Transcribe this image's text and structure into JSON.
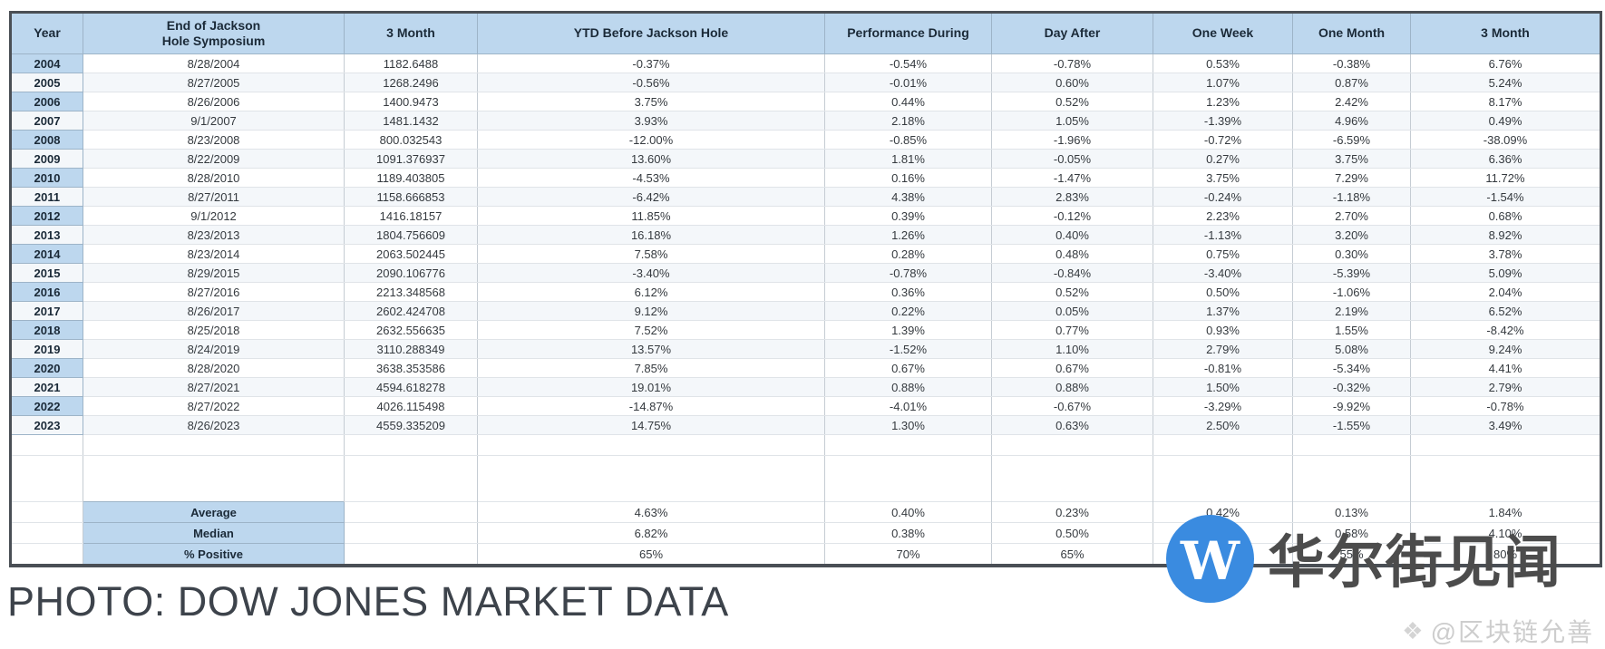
{
  "chart_data": {
    "type": "table",
    "columns": [
      "Year",
      "End of Jackson\nHole Symposium",
      "3 Month",
      "YTD Before Jackson Hole",
      "Performance During",
      "Day After",
      "One Week",
      "One Month",
      "3 Month"
    ],
    "rows": [
      [
        "2004",
        "8/28/2004",
        "1182.6488",
        "-0.37%",
        "-0.54%",
        "-0.78%",
        "0.53%",
        "-0.38%",
        "6.76%"
      ],
      [
        "2005",
        "8/27/2005",
        "1268.2496",
        "-0.56%",
        "-0.01%",
        "0.60%",
        "1.07%",
        "0.87%",
        "5.24%"
      ],
      [
        "2006",
        "8/26/2006",
        "1400.9473",
        "3.75%",
        "0.44%",
        "0.52%",
        "1.23%",
        "2.42%",
        "8.17%"
      ],
      [
        "2007",
        "9/1/2007",
        "1481.1432",
        "3.93%",
        "2.18%",
        "1.05%",
        "-1.39%",
        "4.96%",
        "0.49%"
      ],
      [
        "2008",
        "8/23/2008",
        "800.032543",
        "-12.00%",
        "-0.85%",
        "-1.96%",
        "-0.72%",
        "-6.59%",
        "-38.09%"
      ],
      [
        "2009",
        "8/22/2009",
        "1091.376937",
        "13.60%",
        "1.81%",
        "-0.05%",
        "0.27%",
        "3.75%",
        "6.36%"
      ],
      [
        "2010",
        "8/28/2010",
        "1189.403805",
        "-4.53%",
        "0.16%",
        "-1.47%",
        "3.75%",
        "7.29%",
        "11.72%"
      ],
      [
        "2011",
        "8/27/2011",
        "1158.666853",
        "-6.42%",
        "4.38%",
        "2.83%",
        "-0.24%",
        "-1.18%",
        "-1.54%"
      ],
      [
        "2012",
        "9/1/2012",
        "1416.18157",
        "11.85%",
        "0.39%",
        "-0.12%",
        "2.23%",
        "2.70%",
        "0.68%"
      ],
      [
        "2013",
        "8/23/2013",
        "1804.756609",
        "16.18%",
        "1.26%",
        "0.40%",
        "-1.13%",
        "3.20%",
        "8.92%"
      ],
      [
        "2014",
        "8/23/2014",
        "2063.502445",
        "7.58%",
        "0.28%",
        "0.48%",
        "0.75%",
        "0.30%",
        "3.78%"
      ],
      [
        "2015",
        "8/29/2015",
        "2090.106776",
        "-3.40%",
        "-0.78%",
        "-0.84%",
        "-3.40%",
        "-5.39%",
        "5.09%"
      ],
      [
        "2016",
        "8/27/2016",
        "2213.348568",
        "6.12%",
        "0.36%",
        "0.52%",
        "0.50%",
        "-1.06%",
        "2.04%"
      ],
      [
        "2017",
        "8/26/2017",
        "2602.424708",
        "9.12%",
        "0.22%",
        "0.05%",
        "1.37%",
        "2.19%",
        "6.52%"
      ],
      [
        "2018",
        "8/25/2018",
        "2632.556635",
        "7.52%",
        "1.39%",
        "0.77%",
        "0.93%",
        "1.55%",
        "-8.42%"
      ],
      [
        "2019",
        "8/24/2019",
        "3110.288349",
        "13.57%",
        "-1.52%",
        "1.10%",
        "2.79%",
        "5.08%",
        "9.24%"
      ],
      [
        "2020",
        "8/28/2020",
        "3638.353586",
        "7.85%",
        "0.67%",
        "0.67%",
        "-0.81%",
        "-5.34%",
        "4.41%"
      ],
      [
        "2021",
        "8/27/2021",
        "4594.618278",
        "19.01%",
        "0.88%",
        "0.88%",
        "1.50%",
        "-0.32%",
        "2.79%"
      ],
      [
        "2022",
        "8/27/2022",
        "4026.115498",
        "-14.87%",
        "-4.01%",
        "-0.67%",
        "-3.29%",
        "-9.92%",
        "-0.78%"
      ],
      [
        "2023",
        "8/26/2023",
        "4559.335209",
        "14.75%",
        "1.30%",
        "0.63%",
        "2.50%",
        "-1.55%",
        "3.49%"
      ]
    ],
    "summary_rows": [
      [
        "",
        "Average",
        "",
        "4.63%",
        "0.40%",
        "0.23%",
        "0.42%",
        "0.13%",
        "1.84%"
      ],
      [
        "",
        "Median",
        "",
        "6.82%",
        "0.38%",
        "0.50%",
        "0.64%",
        "0.58%",
        "4.10%"
      ],
      [
        "",
        "% Positive",
        "",
        "65%",
        "70%",
        "65%",
        "65%",
        "55%",
        "80%"
      ]
    ]
  },
  "caption": "PHOTO: DOW JONES MARKET DATA",
  "watermark": {
    "logo_letter": "W",
    "brand": "华尔街见闻",
    "credit_icon": "❖",
    "credit": "@区块链允善"
  },
  "colors": {
    "header_bg": "#bdd7ee",
    "logo_blue": "#3a8be0",
    "brand_text": "#4c4c4c",
    "caption_text": "#3d434b",
    "credit_text": "#cdcdcd"
  }
}
